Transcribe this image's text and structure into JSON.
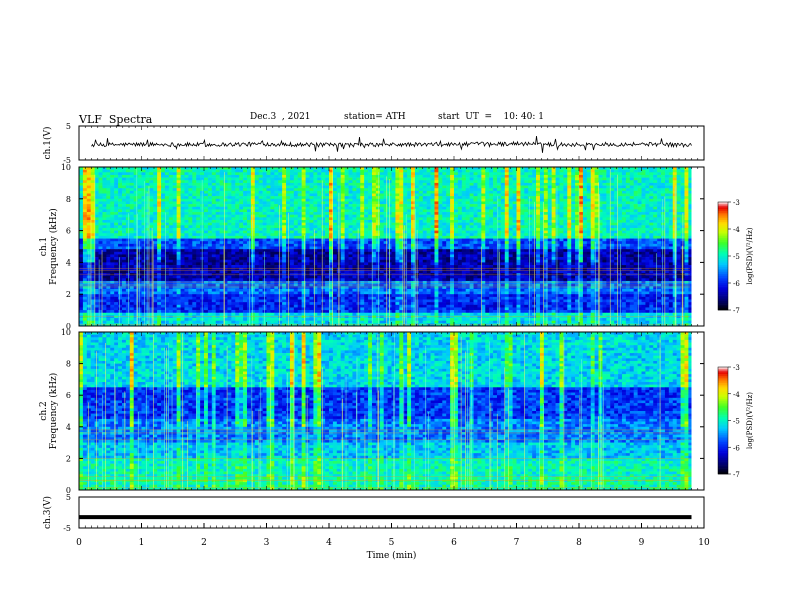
{
  "header": {
    "title": "VLF  Spectra",
    "date": "Dec.3  , 2021",
    "station": "station= ATH",
    "start": "start  UT  =    10: 40: 1"
  },
  "chart_data": [
    {
      "type": "line",
      "name": "ch1-waveform",
      "ylabel": "ch.1(V)",
      "ylim": [
        -5,
        5
      ],
      "yticks": [
        "5",
        "-5"
      ],
      "xlim": [
        0,
        10
      ],
      "series": [
        {
          "x": [
            0.2,
            1.0,
            2.0,
            3.0,
            4.0,
            5.0,
            6.0,
            7.0,
            8.0,
            9.0,
            9.8
          ],
          "values": [
            -0.6,
            -0.4,
            -0.5,
            -0.3,
            -0.6,
            -0.5,
            -0.4,
            -0.2,
            -0.5,
            -0.3,
            -0.6
          ]
        }
      ]
    },
    {
      "type": "heatmap",
      "name": "ch1-spectrogram",
      "ylabel": "ch.1\nFrequency  (kHz)",
      "ylim": [
        0,
        10
      ],
      "xlim": [
        0,
        10
      ],
      "yticks": [
        "0",
        "2",
        "4",
        "6",
        "8",
        "10"
      ],
      "colorbar": {
        "label": "log(PSD)(V²/Hz)",
        "ticks": [
          "-3",
          "-4",
          "-5",
          "-6",
          "-7"
        ],
        "range": [
          -7,
          -3
        ]
      }
    },
    {
      "type": "heatmap",
      "name": "ch2-spectrogram",
      "ylabel": "ch.2\nFrequency  (kHz)",
      "ylim": [
        0,
        10
      ],
      "xlim": [
        0,
        10
      ],
      "yticks": [
        "0",
        "2",
        "4",
        "6",
        "8",
        "10"
      ],
      "colorbar": {
        "label": "log(PSD)(V²/Hz)",
        "ticks": [
          "-3",
          "-4",
          "-5",
          "-6",
          "-7"
        ],
        "range": [
          -7,
          -3
        ]
      }
    },
    {
      "type": "line",
      "name": "ch3-waveform",
      "ylabel": "ch.3(V)",
      "ylim": [
        -5,
        5
      ],
      "yticks": [
        "5",
        "-5"
      ],
      "xlim": [
        0,
        10
      ],
      "xlabel": "Time  (min)",
      "xticks": [
        "0",
        "1",
        "2",
        "3",
        "4",
        "5",
        "6",
        "7",
        "8",
        "9",
        "10"
      ],
      "series": [
        {
          "x": [
            0.0,
            9.8
          ],
          "values": [
            -1.5,
            -1.5
          ]
        }
      ]
    }
  ]
}
